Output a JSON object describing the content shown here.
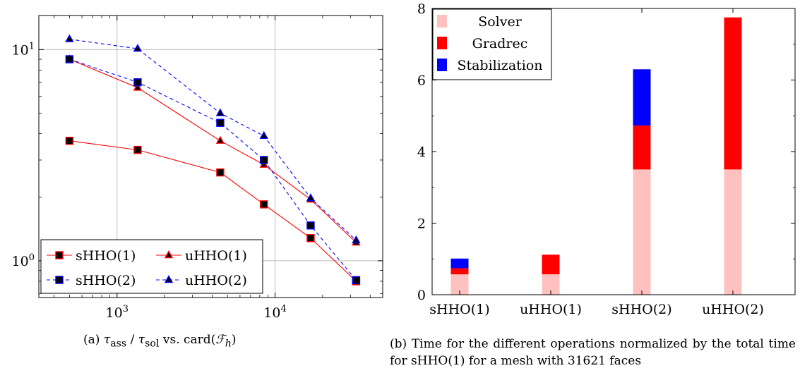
{
  "chart_data": [
    {
      "type": "line",
      "log_x": true,
      "log_y": true,
      "xlim": [
        320,
        48000
      ],
      "ylim": [
        0.67,
        14.5
      ],
      "grid": true,
      "x_ticks": [
        {
          "value": 1000,
          "base": "10",
          "exp": "3"
        },
        {
          "value": 10000,
          "base": "10",
          "exp": "4"
        }
      ],
      "y_ticks": [
        {
          "value": 1,
          "base": "10",
          "exp": "0"
        },
        {
          "value": 10,
          "base": "10",
          "exp": "1"
        }
      ],
      "x": [
        500,
        1350,
        4500,
        8500,
        16800,
        32600
      ],
      "series": [
        {
          "name": "sHHO(1)",
          "color": "#ff0000",
          "dashed": false,
          "marker": "square",
          "values": [
            3.7,
            3.35,
            2.62,
            1.85,
            1.28,
            0.8
          ]
        },
        {
          "name": "uHHO(1)",
          "color": "#ff0000",
          "dashed": false,
          "marker": "triangle",
          "values": [
            9.0,
            6.6,
            3.7,
            2.85,
            1.95,
            1.22
          ]
        },
        {
          "name": "sHHO(2)",
          "color": "#0000ff",
          "dashed": true,
          "marker": "square",
          "values": [
            9.0,
            7.0,
            4.5,
            3.0,
            1.47,
            0.81
          ]
        },
        {
          "name": "uHHO(2)",
          "color": "#0000ff",
          "dashed": true,
          "marker": "triangle",
          "values": [
            11.2,
            10.1,
            5.0,
            3.9,
            1.98,
            1.25
          ]
        }
      ],
      "legend": "bottom-left",
      "caption": {
        "prefix": "(a) ",
        "tau": "τ",
        "sub_ass": "ass",
        "slash": " / ",
        "sub_sol": "sol",
        "vs": " vs. card(",
        "calF": "ℱ",
        "sub_h": "h",
        "close": ")"
      }
    },
    {
      "type": "bar",
      "stacked": true,
      "categories": [
        "sHHO(1)",
        "uHHO(1)",
        "sHHO(2)",
        "uHHO(2)"
      ],
      "ylim": [
        0,
        8
      ],
      "y_ticks": [
        "0",
        "2",
        "4",
        "6",
        "8"
      ],
      "grid": false,
      "series": [
        {
          "name": "Solver",
          "color": "#ffc0c0",
          "values": [
            0.57,
            0.57,
            3.5,
            3.5
          ]
        },
        {
          "name": "Gradrec",
          "color": "#ff0000",
          "values": [
            0.17,
            0.55,
            1.23,
            4.25
          ]
        },
        {
          "name": "Stabilization",
          "color": "#0000ff",
          "values": [
            0.27,
            0,
            1.57,
            0
          ]
        }
      ],
      "legend": "top-left",
      "caption": "(b) Time for the different operations normalized by the total time for sHHO(1) for a mesh with 31621 faces"
    }
  ]
}
